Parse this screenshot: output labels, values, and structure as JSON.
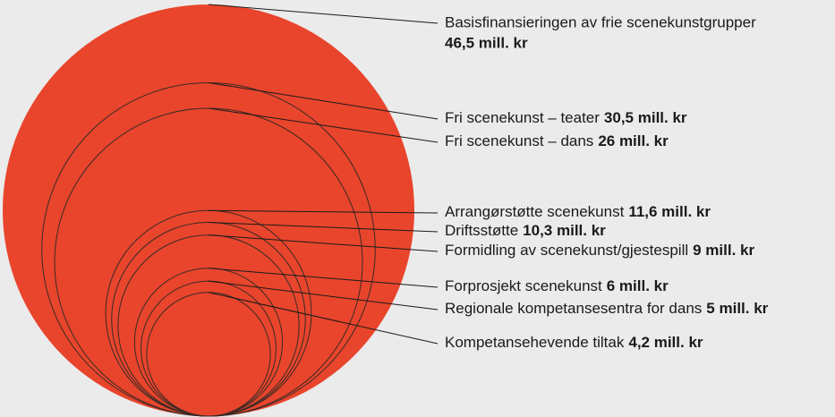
{
  "chart_data": {
    "type": "nested-circles",
    "categories": [
      "Basisfinansieringen av frie scenekunstgrupper",
      "Fri scenekunst – teater",
      "Fri scenekunst – dans",
      "Arrangørstøtte scenekunst",
      "Driftsstøtte",
      "Formidling av scenekunst/gjestespill",
      "Forprosjekt scenekunst",
      "Regionale kompetansesentra for dans",
      "Kompetansehevende tiltak"
    ],
    "values": [
      46.5,
      30.5,
      26,
      11.6,
      10.3,
      9,
      6,
      5,
      4.2
    ],
    "value_labels": [
      "46,5 mill. kr",
      "30,5 mill. kr",
      "26 mill. kr",
      "11,6 mill. kr",
      "10,3 mill. kr",
      "9 mill. kr",
      "6 mill. kr",
      "5 mill. kr",
      "4,2 mill. kr"
    ],
    "color": "#e8452c"
  }
}
